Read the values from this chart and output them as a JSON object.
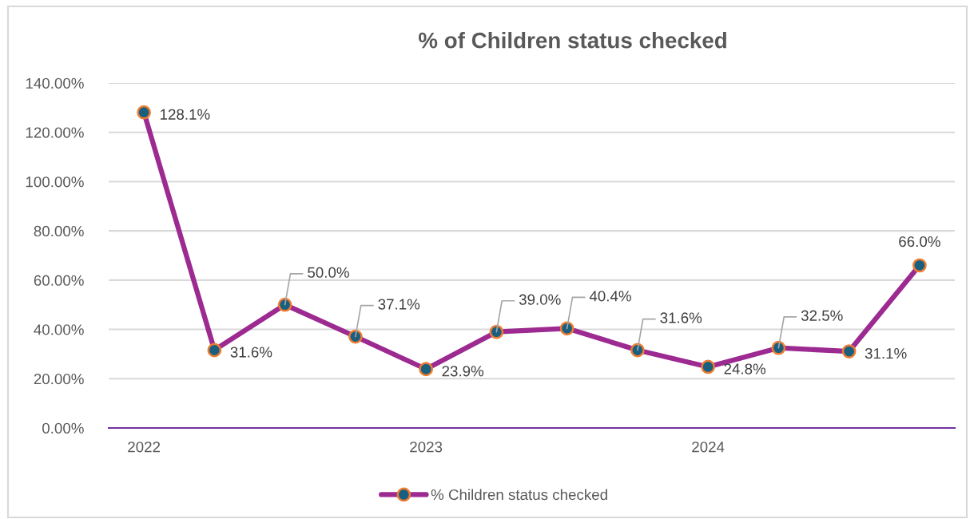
{
  "chart_data": {
    "type": "line",
    "title": "% of Children status checked",
    "categories": [
      "2022",
      null,
      null,
      null,
      "2023",
      null,
      null,
      null,
      "2024",
      null,
      null,
      null
    ],
    "series": [
      {
        "name": "% Children status checked",
        "color": "#9c2a91",
        "values": [
          128.1,
          31.6,
          50.0,
          37.1,
          23.9,
          39.0,
          40.4,
          31.6,
          24.8,
          32.5,
          31.1,
          66.0
        ],
        "value_labels": [
          "128.1%",
          "31.6%",
          "50.0%",
          "37.1%",
          "23.9%",
          "39.0%",
          "40.4%",
          "31.6%",
          "24.8%",
          "32.5%",
          "31.1%",
          "66.0%"
        ]
      }
    ],
    "ylim": [
      0,
      140
    ],
    "yticks": [
      {
        "value": 0,
        "label": "0.00%"
      },
      {
        "value": 20,
        "label": "20.00%"
      },
      {
        "value": 40,
        "label": "40.00%"
      },
      {
        "value": 60,
        "label": "60.00%"
      },
      {
        "value": 80,
        "label": "80.00%"
      },
      {
        "value": 100,
        "label": "100.00%"
      },
      {
        "value": 120,
        "label": "120.00%"
      },
      {
        "value": 140,
        "label": "140.00%"
      }
    ],
    "grid": "y",
    "legend": "bottom",
    "marker": "circle",
    "line_style": "solid"
  }
}
